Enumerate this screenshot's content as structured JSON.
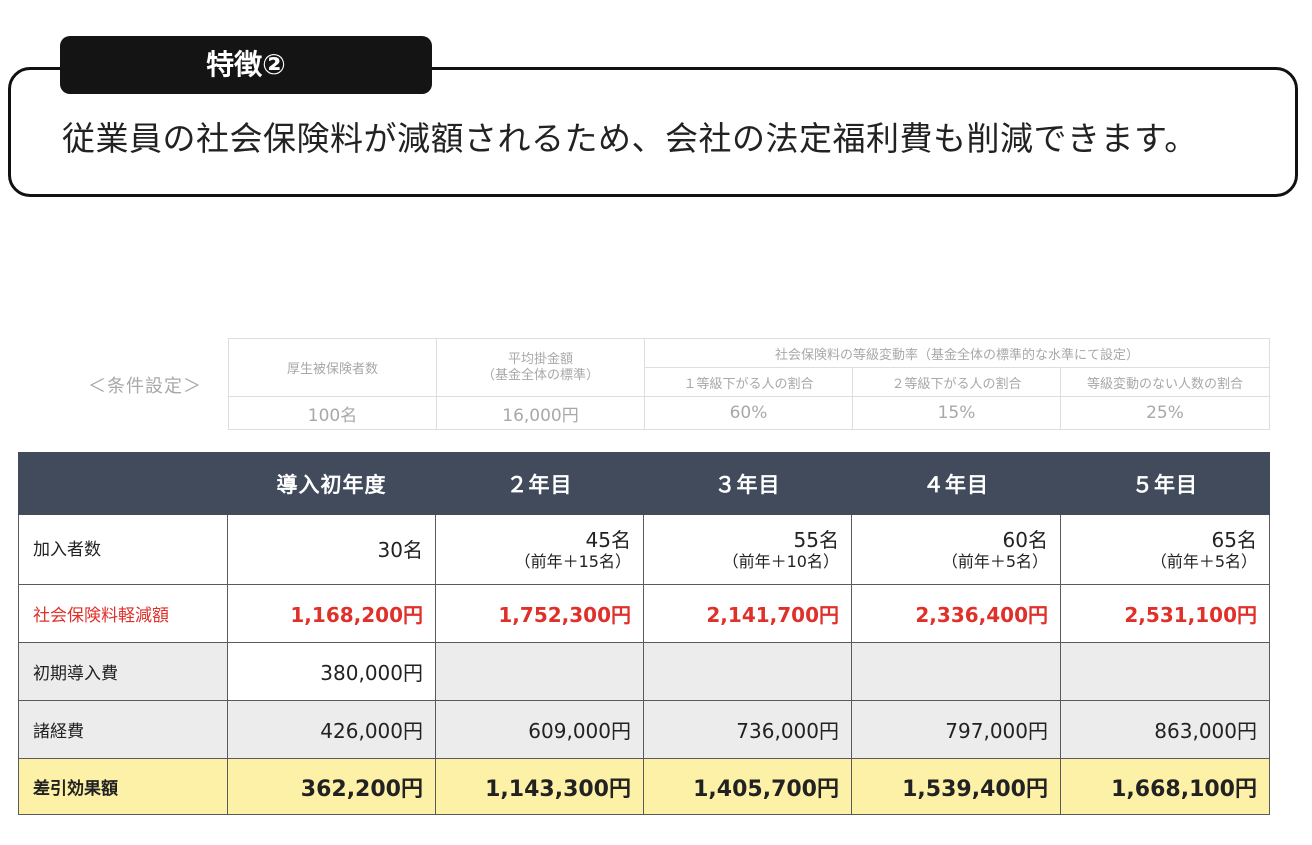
{
  "feature": {
    "tab_label": "特徴②",
    "text": "従業員の社会保険料が減額されるため、会社の法定福利費も削減できます。"
  },
  "conditions": {
    "label": "＜条件設定＞",
    "headers": {
      "insured": "厚生被保険者数",
      "avg_line1": "平均掛金額",
      "avg_line2": "（基金全体の標準）",
      "rate_group": "社会保険料の等級変動率（基金全体の標準的な水準にて設定）",
      "rate1": "１等級下がる人の割合",
      "rate2": "２等級下がる人の割合",
      "rate3": "等級変動のない人数の割合"
    },
    "values": {
      "insured": "100名",
      "avg": "16,000円",
      "rate1": "60%",
      "rate2": "15%",
      "rate3": "25%"
    }
  },
  "table": {
    "headers": [
      "",
      "導入初年度",
      "２年目",
      "３年目",
      "４年目",
      "５年目"
    ],
    "members": {
      "label": "加入者数",
      "values": [
        "30名",
        "45名",
        "55名",
        "60名",
        "65名"
      ],
      "subs": [
        "",
        "（前年＋15名）",
        "（前年＋10名）",
        "（前年＋5名）",
        "（前年＋5名）"
      ]
    },
    "reduction": {
      "label": "社会保険料軽減額",
      "values": [
        "1,168,200円",
        "1,752,300円",
        "2,141,700円",
        "2,336,400円",
        "2,531,100円"
      ]
    },
    "initial_cost": {
      "label": "初期導入費",
      "values": [
        "380,000円",
        "",
        "",
        "",
        ""
      ]
    },
    "expenses": {
      "label": "諸経費",
      "values": [
        "426,000円",
        "609,000円",
        "736,000円",
        "797,000円",
        "863,000円"
      ]
    },
    "effect": {
      "label": "差引効果額",
      "values": [
        "362,200円",
        "1,143,300円",
        "1,405,700円",
        "1,539,400円",
        "1,668,100円"
      ]
    }
  }
}
